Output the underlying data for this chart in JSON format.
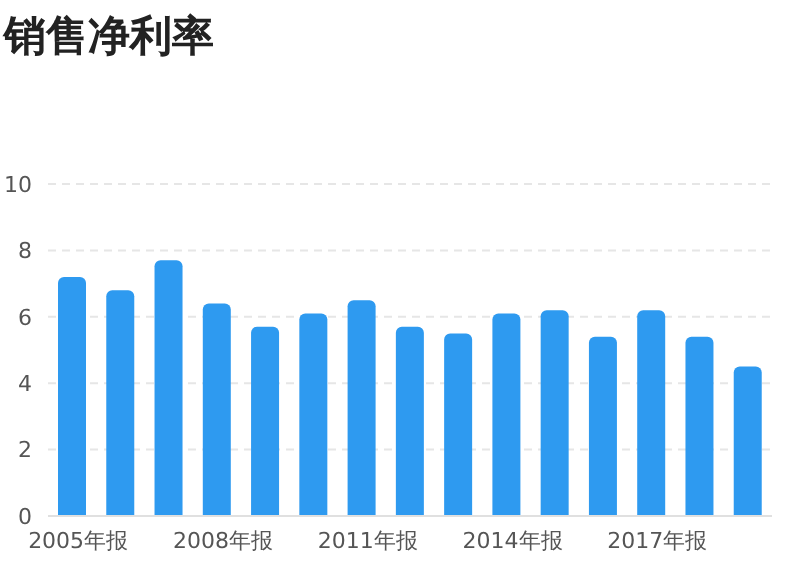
{
  "chart_data": {
    "type": "bar",
    "title": "销售净利率",
    "categories": [
      "2005年报",
      null,
      null,
      "2008年报",
      null,
      null,
      "2011年报",
      null,
      null,
      "2014年报",
      null,
      null,
      "2017年报",
      null,
      null
    ],
    "values": [
      7.2,
      6.8,
      7.7,
      6.4,
      5.7,
      6.1,
      6.5,
      5.7,
      5.5,
      6.1,
      6.2,
      5.4,
      6.2,
      5.4,
      4.5
    ],
    "color": "#2e9af0",
    "ylim": [
      0,
      10
    ],
    "yticks": [
      0,
      2,
      4,
      6,
      8,
      10
    ],
    "grid": "y"
  }
}
